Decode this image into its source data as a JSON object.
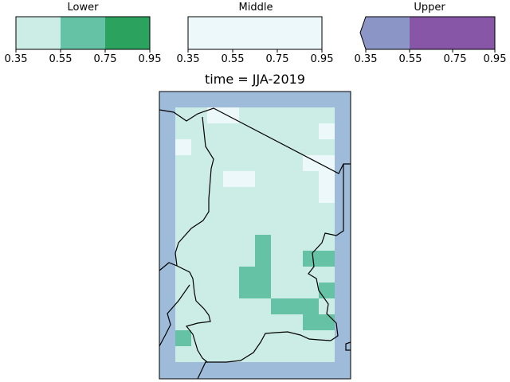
{
  "colorbars": [
    {
      "title": "Lower",
      "ticks": [
        "0.35",
        "0.55",
        "0.75",
        "0.95"
      ],
      "colors": [
        "#ccece6",
        "#66c2a4",
        "#2ca25f"
      ]
    },
    {
      "title": "Middle",
      "ticks": [
        "0.35",
        "0.55",
        "0.75",
        "0.95"
      ],
      "colors": [
        "#edf8fb",
        "#edf8fb",
        "#edf8fb"
      ]
    },
    {
      "title": "Upper",
      "ticks": [
        "0.35",
        "0.55",
        "0.75",
        "0.95"
      ],
      "colors": [
        "#8c96c6",
        "#8856a7",
        "#8856a7"
      ],
      "extend": "min"
    }
  ],
  "map": {
    "title": "time = JJA-2019",
    "ocean_color": "#9ebcda",
    "border_color": "#000000"
  }
}
